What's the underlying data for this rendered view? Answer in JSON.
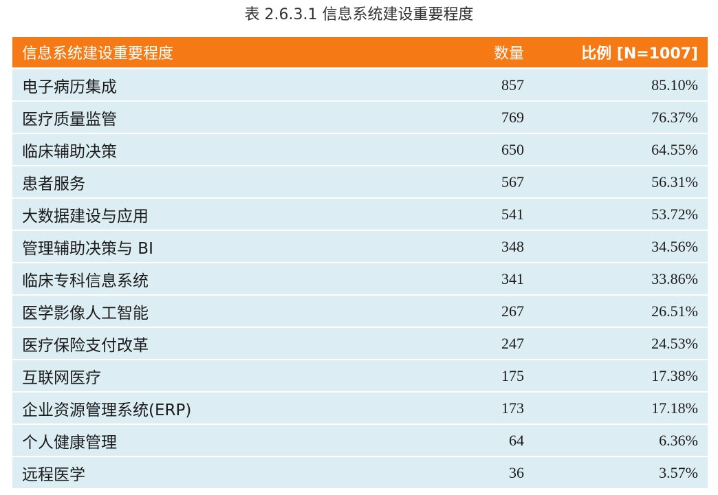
{
  "caption": "表 2.6.3.1  信息系统建设重要程度",
  "header": {
    "name": "信息系统建设重要程度",
    "count": "数量",
    "ratio": "比例 [N=1007]"
  },
  "rows": [
    {
      "name": "电子病历集成",
      "count": "857",
      "ratio": "85.10%"
    },
    {
      "name": "医疗质量监管",
      "count": "769",
      "ratio": "76.37%"
    },
    {
      "name": "临床辅助决策",
      "count": "650",
      "ratio": "64.55%"
    },
    {
      "name": "患者服务",
      "count": "567",
      "ratio": "56.31%"
    },
    {
      "name": "大数据建设与应用",
      "count": "541",
      "ratio": "53.72%"
    },
    {
      "name": "管理辅助决策与 BI",
      "count": "348",
      "ratio": "34.56%"
    },
    {
      "name": "临床专科信息系统",
      "count": "341",
      "ratio": "33.86%"
    },
    {
      "name": "医学影像人工智能",
      "count": "267",
      "ratio": "26.51%"
    },
    {
      "name": "医疗保险支付改革",
      "count": "247",
      "ratio": "24.53%"
    },
    {
      "name": "互联网医疗",
      "count": "175",
      "ratio": "17.38%"
    },
    {
      "name": "企业资源管理系统(ERP)",
      "count": "173",
      "ratio": "17.18%"
    },
    {
      "name": "个人健康管理",
      "count": "64",
      "ratio": "6.36%"
    },
    {
      "name": "远程医学",
      "count": "36",
      "ratio": "3.57%"
    }
  ],
  "colors": {
    "header_bg": "#f57a16",
    "row_bg": "#dcedf3"
  }
}
